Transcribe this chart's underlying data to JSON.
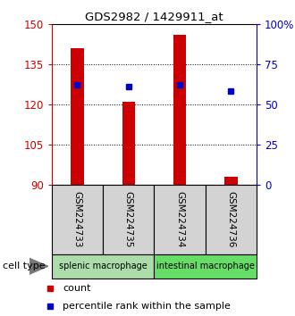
{
  "title": "GDS2982 / 1429911_at",
  "samples": [
    "GSM224733",
    "GSM224735",
    "GSM224734",
    "GSM224736"
  ],
  "bar_values": [
    141,
    121,
    146,
    93
  ],
  "bar_base": 90,
  "percentile_values": [
    62,
    61,
    62,
    58
  ],
  "y_min": 90,
  "y_max": 150,
  "y_ticks": [
    90,
    105,
    120,
    135,
    150
  ],
  "right_y_ticks": [
    0,
    25,
    50,
    75,
    100
  ],
  "right_y_tick_labels": [
    "0",
    "25",
    "50",
    "75",
    "100%"
  ],
  "bar_color": "#cc0000",
  "percentile_color": "#0000cc",
  "cell_types": [
    {
      "label": "splenic macrophage",
      "samples": [
        0,
        1
      ],
      "color": "#aaddaa"
    },
    {
      "label": "intestinal macrophage",
      "samples": [
        2,
        3
      ],
      "color": "#66dd66"
    }
  ],
  "cell_type_label": "cell type",
  "legend_count_label": "count",
  "legend_percentile_label": "percentile rank within the sample",
  "bar_width": 0.25
}
